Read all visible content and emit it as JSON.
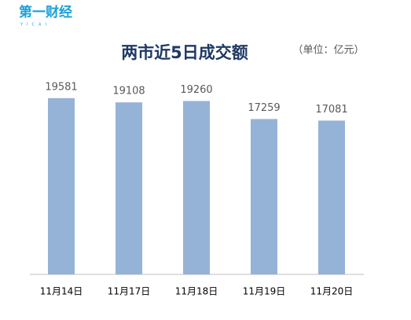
{
  "logo": "第一财经",
  "logo_sub": "YICAI",
  "chart_data": {
    "type": "bar",
    "title": "两市近5日成交额",
    "subtitle": "（单位：亿元）",
    "categories": [
      "11月14日",
      "11月17日",
      "11月18日",
      "11月19日",
      "11月20日"
    ],
    "values": [
      19581,
      19108,
      19260,
      17259,
      17081
    ],
    "color": "#95b3d7",
    "ylim": [
      0,
      20000
    ]
  }
}
